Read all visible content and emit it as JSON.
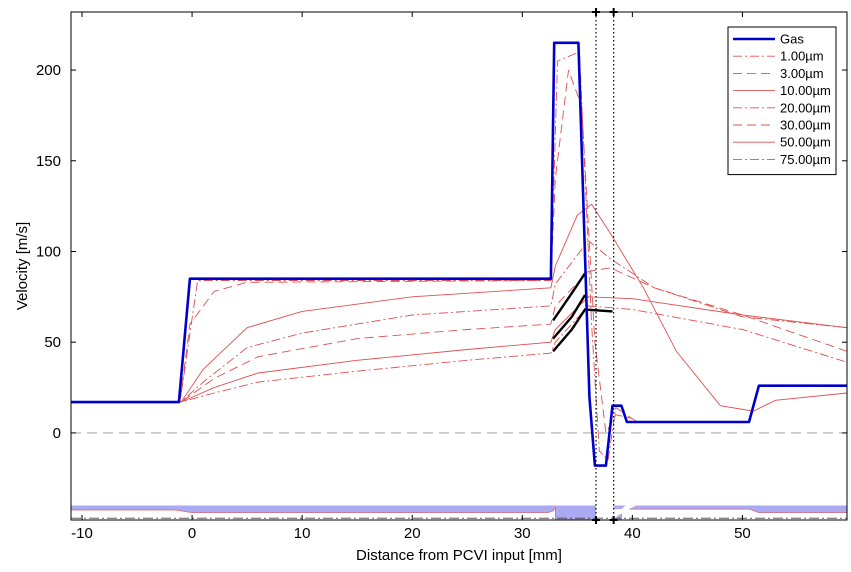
{
  "chart_data": {
    "type": "line",
    "xlabel": "Distance from PCVI input [mm]",
    "ylabel": "Velocity [m/s]",
    "xlim": [
      -11,
      59.5
    ],
    "ylim": [
      -48,
      232
    ],
    "x_ticks": [
      -10,
      0,
      10,
      20,
      30,
      40,
      50
    ],
    "y_ticks": [
      0,
      50,
      100,
      150,
      200
    ],
    "grid": false,
    "legend_position": "top-right",
    "zero_line": {
      "y": 0,
      "style": "dashed"
    },
    "vertical_markers": [
      36.7,
      38.3
    ],
    "colors": {
      "gas": "#0000cc",
      "particle": "#e05050",
      "channel": "#aaaaf2",
      "highlight": "#000000"
    },
    "series": [
      {
        "name": "Gas",
        "style": "solid-thick",
        "points": [
          [
            -11,
            17
          ],
          [
            -1.2,
            17
          ],
          [
            -0.2,
            85
          ],
          [
            32.6,
            85
          ],
          [
            32.9,
            215
          ],
          [
            35.1,
            215
          ],
          [
            36.1,
            20
          ],
          [
            36.6,
            -18
          ],
          [
            37.6,
            -18
          ],
          [
            38.2,
            15
          ],
          [
            39.0,
            15
          ],
          [
            39.5,
            6
          ],
          [
            50.6,
            6
          ],
          [
            51.5,
            26
          ],
          [
            59.5,
            26
          ]
        ]
      },
      {
        "name": "1.00µm",
        "style": "dashdot",
        "points": [
          [
            -11,
            17
          ],
          [
            -1.1,
            17
          ],
          [
            0.5,
            84
          ],
          [
            32.6,
            84
          ],
          [
            33.2,
            205
          ],
          [
            35.2,
            210
          ],
          [
            36.3,
            60
          ],
          [
            37.0,
            -10
          ],
          [
            37.8,
            -15
          ],
          [
            38.5,
            14
          ],
          [
            39.4,
            10
          ],
          [
            40.5,
            6
          ]
        ]
      },
      {
        "name": "3.00µm",
        "style": "dashed",
        "points": [
          [
            -11,
            17
          ],
          [
            -1.1,
            17
          ],
          [
            -0.2,
            60
          ],
          [
            2.0,
            78
          ],
          [
            5.0,
            83
          ],
          [
            32.6,
            84
          ],
          [
            33.0,
            140
          ],
          [
            34.2,
            200
          ],
          [
            35.4,
            180
          ],
          [
            36.6,
            50
          ],
          [
            37.6,
            0
          ],
          [
            38.5,
            10
          ],
          [
            40.0,
            8
          ]
        ]
      },
      {
        "name": "10.00µm",
        "style": "solid",
        "points": [
          [
            -11,
            17
          ],
          [
            -1.0,
            17
          ],
          [
            1.0,
            35
          ],
          [
            5.0,
            58
          ],
          [
            10.0,
            67
          ],
          [
            20.0,
            75
          ],
          [
            32.6,
            80
          ],
          [
            33.0,
            92
          ],
          [
            35.0,
            120
          ],
          [
            36.3,
            126
          ],
          [
            38.0,
            110
          ],
          [
            41.0,
            80
          ],
          [
            44.0,
            45
          ],
          [
            48.0,
            15
          ],
          [
            51.0,
            12
          ],
          [
            53.0,
            18
          ],
          [
            59.5,
            22
          ]
        ]
      },
      {
        "name": "20.00µm",
        "style": "dashdot",
        "points": [
          [
            -11,
            17
          ],
          [
            -1.0,
            17
          ],
          [
            1.0,
            28
          ],
          [
            5.0,
            47
          ],
          [
            10.0,
            55
          ],
          [
            20.0,
            65
          ],
          [
            32.6,
            70
          ],
          [
            33.0,
            82
          ],
          [
            36.0,
            106
          ],
          [
            38.0,
            96
          ],
          [
            42.0,
            80
          ],
          [
            50.0,
            64
          ],
          [
            59.5,
            58
          ]
        ]
      },
      {
        "name": "30.00µm",
        "style": "dashed",
        "points": [
          [
            -11,
            17
          ],
          [
            -1.0,
            17
          ],
          [
            2.0,
            30
          ],
          [
            6.0,
            42
          ],
          [
            15.0,
            52
          ],
          [
            25.0,
            57
          ],
          [
            32.6,
            60
          ],
          [
            33.0,
            70
          ],
          [
            36.0,
            89
          ],
          [
            38.0,
            91
          ],
          [
            42.0,
            80
          ],
          [
            50.0,
            65
          ],
          [
            59.5,
            45
          ]
        ]
      },
      {
        "name": "50.00µm",
        "style": "solid",
        "points": [
          [
            -11,
            17
          ],
          [
            -1.0,
            17
          ],
          [
            2.0,
            25
          ],
          [
            6.0,
            33
          ],
          [
            15.0,
            40
          ],
          [
            25.0,
            46
          ],
          [
            32.6,
            50
          ],
          [
            33.0,
            57
          ],
          [
            36.0,
            75
          ],
          [
            40.0,
            74
          ],
          [
            50.0,
            65
          ],
          [
            59.5,
            58
          ]
        ]
      },
      {
        "name": "75.00µm",
        "style": "dashdot",
        "points": [
          [
            -11,
            17
          ],
          [
            -1.0,
            17
          ],
          [
            2.0,
            22
          ],
          [
            6.0,
            28
          ],
          [
            15.0,
            34
          ],
          [
            25.0,
            40
          ],
          [
            32.6,
            44
          ],
          [
            33.0,
            50
          ],
          [
            36.0,
            70
          ],
          [
            40.0,
            68
          ],
          [
            50.0,
            57
          ],
          [
            59.5,
            39
          ]
        ]
      }
    ],
    "highlight_segments": [
      {
        "points": [
          [
            32.8,
            62
          ],
          [
            34.5,
            77
          ],
          [
            35.7,
            88
          ]
        ]
      },
      {
        "points": [
          [
            32.8,
            52
          ],
          [
            34.5,
            64
          ],
          [
            35.7,
            76
          ]
        ]
      },
      {
        "points": [
          [
            32.8,
            45
          ],
          [
            34.5,
            57
          ],
          [
            35.7,
            68
          ],
          [
            38.2,
            67
          ]
        ]
      }
    ],
    "channel_profile": {
      "wall_outer": [
        -40,
        -61
      ],
      "centerline": -47,
      "gap_top": [
        [
          -11,
          -42.5
        ],
        [
          -1.5,
          -42.5
        ],
        [
          0,
          -44
        ],
        [
          32.3,
          -44
        ],
        [
          32.8,
          -43
        ],
        [
          33.0,
          -41
        ],
        [
          59.5,
          -41
        ]
      ],
      "gap_bottom": [
        [
          -11,
          -51.5
        ],
        [
          -1.5,
          -51.5
        ],
        [
          0,
          -50
        ],
        [
          32.3,
          -50
        ],
        [
          32.8,
          -51
        ],
        [
          33.0,
          -53
        ],
        [
          59.5,
          -53
        ]
      ],
      "right_gap_top": [
        [
          39.0,
          -42
        ],
        [
          50.6,
          -42
        ],
        [
          51.5,
          -44
        ],
        [
          59.5,
          -44
        ]
      ],
      "right_gap_bottom": [
        [
          39.0,
          -52
        ],
        [
          50.6,
          -52
        ],
        [
          51.5,
          -50
        ],
        [
          59.5,
          -50
        ]
      ]
    }
  }
}
